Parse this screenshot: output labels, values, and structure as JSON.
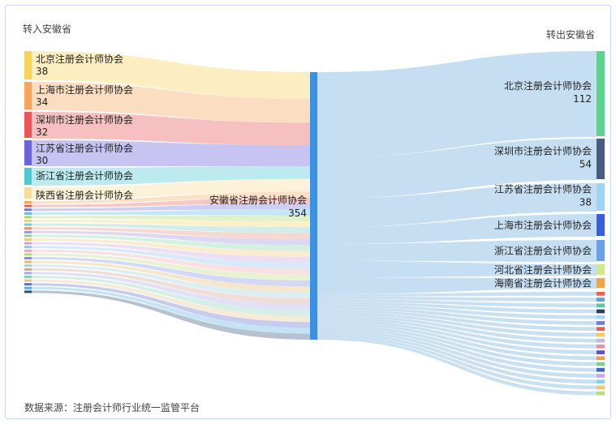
{
  "captions": {
    "left_title": "转入安徽省",
    "right_title": "转出安徽省",
    "source": "数据来源：注册会计师行业统一监管平台"
  },
  "chart_data": {
    "type": "sankey",
    "center": {
      "name": "安徽省注册会计师协会",
      "value": 354
    },
    "inflows": [
      {
        "name": "北京注册会计师协会",
        "value": 38,
        "color": "#f7d25a"
      },
      {
        "name": "上海市注册会计师协会",
        "value": 34,
        "color": "#f5a55f"
      },
      {
        "name": "深圳市注册会计师协会",
        "value": 32,
        "color": "#e8585a"
      },
      {
        "name": "江苏省注册会计师协会",
        "value": 30,
        "color": "#6b64db"
      },
      {
        "name": "浙江省注册会计师协会",
        "value": null,
        "color": "#52c7d4"
      },
      {
        "name": "陕西省注册会计师协会",
        "value": null,
        "color": "#f6dd9a"
      }
    ],
    "inflow_minor_colors": [
      "#f1a85d",
      "#e3605c",
      "#6f74de",
      "#5ab9dd",
      "#a8d86e",
      "#f4d462",
      "#7bc8c4",
      "#e98f7c",
      "#9b8fe0",
      "#84d4a2",
      "#f1c77a",
      "#c9a0dc",
      "#8fc1f0",
      "#f2a7b0",
      "#b6d97c",
      "#7e8fe2",
      "#e6b86a",
      "#9ecfd9",
      "#d89f8e",
      "#a5a9e6",
      "#8ad0b6",
      "#e6c48f",
      "#5c6bd0",
      "#57b1e0",
      "#304d78"
    ],
    "outflows": [
      {
        "name": "北京注册会计师协会",
        "value": 112,
        "color": "#5ed38e"
      },
      {
        "name": "深圳市注册会计师协会",
        "value": 54,
        "color": "#4a5b80"
      },
      {
        "name": "江苏省注册会计师协会",
        "value": 38,
        "color": "#9ed4f2"
      },
      {
        "name": "上海市注册会计师协会",
        "value": null,
        "color": "#3c5ed9"
      },
      {
        "name": "浙江省注册会计师协会",
        "value": null,
        "color": "#6d9ee8"
      },
      {
        "name": "河北省注册会计师协会",
        "value": null,
        "color": "#d2e68a"
      },
      {
        "name": "海南省注册会计师协会",
        "value": null,
        "color": "#f0a347"
      }
    ],
    "outflow_minor_colors": [
      "#e8605a",
      "#5aa0e0",
      "#5fc4a8",
      "#2e3c5c",
      "#a7d6f4",
      "#6b7fd4",
      "#e85c58",
      "#f7c85a",
      "#c7b4e6",
      "#f28ab0",
      "#5c4fc0",
      "#ef9c4a",
      "#7ad28e",
      "#3f62c4",
      "#d9a0e6",
      "#89cfe8",
      "#f3c36e",
      "#b8e07a"
    ],
    "node_color": "#3f8fe0",
    "link_color_out": "#bcd8ee"
  }
}
